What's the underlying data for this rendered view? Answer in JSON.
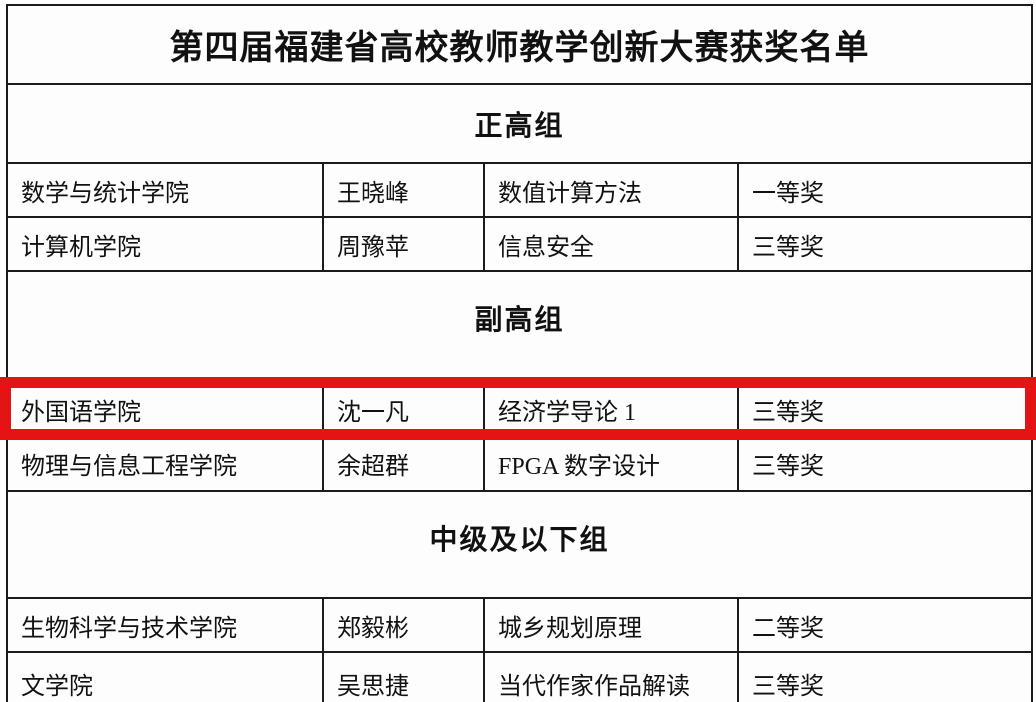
{
  "colors": {
    "highlight": "#e21414",
    "border": "#1b1b1b",
    "background": "#fdfdfd",
    "text": "#111111"
  },
  "table": {
    "title": "第四届福建省高校教师教学创新大赛获奖名单",
    "sections": [
      {
        "header": "正高组",
        "rows": [
          {
            "college": "数学与统计学院",
            "teacher": "王晓峰",
            "course": "数值计算方法",
            "award": "一等奖"
          },
          {
            "college": "计算机学院",
            "teacher": "周豫苹",
            "course": "信息安全",
            "award": "三等奖"
          }
        ]
      },
      {
        "header": "副高组",
        "rows": [
          {
            "college": "外国语学院",
            "teacher": "沈一凡",
            "course": "经济学导论 1",
            "award": "三等奖",
            "highlighted": true
          },
          {
            "college": "物理与信息工程学院",
            "teacher": "余超群",
            "course": "FPGA 数字设计",
            "award": "三等奖"
          }
        ]
      },
      {
        "header": "中级及以下组",
        "rows": [
          {
            "college": "生物科学与技术学院",
            "teacher": "郑毅彬",
            "course": "城乡规划原理",
            "award": "二等奖"
          },
          {
            "college": "文学院",
            "teacher": "吴思捷",
            "course": "当代作家作品解读",
            "award": "三等奖"
          }
        ]
      }
    ]
  }
}
